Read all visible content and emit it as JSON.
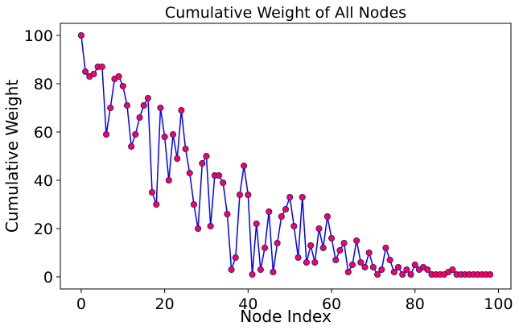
{
  "chart_data": {
    "type": "line",
    "title": "Cumulative Weight of All Nodes",
    "xlabel": "Node Index",
    "ylabel": "Cumulative Weight",
    "xlim": [
      -5,
      103
    ],
    "ylim": [
      -5,
      105
    ],
    "xticks": [
      0,
      20,
      40,
      60,
      80,
      100
    ],
    "yticks": [
      0,
      20,
      40,
      60,
      80,
      100
    ],
    "grid": false,
    "line_color": "#0000ff",
    "marker_face_color": "#ff0055",
    "marker_edge_color": "#1a1a8c",
    "series": [
      {
        "x": [
          0,
          1,
          2,
          3,
          4,
          5,
          6,
          7,
          8,
          9,
          10,
          11,
          12,
          13,
          14,
          15,
          16,
          17,
          18,
          19,
          20,
          21,
          22,
          23,
          24,
          25,
          26,
          27,
          28,
          29,
          30,
          31,
          32,
          33,
          34,
          35,
          36,
          37,
          38,
          39,
          40,
          41,
          42,
          43,
          44,
          45,
          46,
          47,
          48,
          49,
          50,
          51,
          52,
          53,
          54,
          55,
          56,
          57,
          58,
          59,
          60,
          61,
          62,
          63,
          64,
          65,
          66,
          67,
          68,
          69,
          70,
          71,
          72,
          73,
          74,
          75,
          76,
          77,
          78,
          79,
          80,
          81,
          82,
          83,
          84,
          85,
          86,
          87,
          88,
          89,
          90,
          91,
          92,
          93,
          94,
          95,
          96,
          97,
          98
        ],
        "values": [
          100,
          85,
          83,
          84,
          87,
          87,
          59,
          70,
          82,
          83,
          79,
          71,
          54,
          59,
          66,
          71,
          74,
          35,
          30,
          70,
          58,
          40,
          59,
          49,
          69,
          53,
          43,
          30,
          20,
          47,
          50,
          21,
          42,
          42,
          39,
          26,
          3,
          8,
          34,
          46,
          34,
          1,
          22,
          3,
          12,
          27,
          2,
          14,
          25,
          28,
          33,
          21,
          8,
          33,
          6,
          13,
          6,
          20,
          12,
          25,
          16,
          7,
          11,
          14,
          2,
          5,
          15,
          6,
          4,
          10,
          4,
          1,
          3,
          12,
          7,
          2,
          4,
          1,
          3,
          1,
          5,
          3,
          4,
          3,
          1,
          1,
          1,
          1,
          2,
          3,
          1,
          1,
          1,
          1,
          1,
          1,
          1,
          1,
          1
        ]
      }
    ]
  }
}
